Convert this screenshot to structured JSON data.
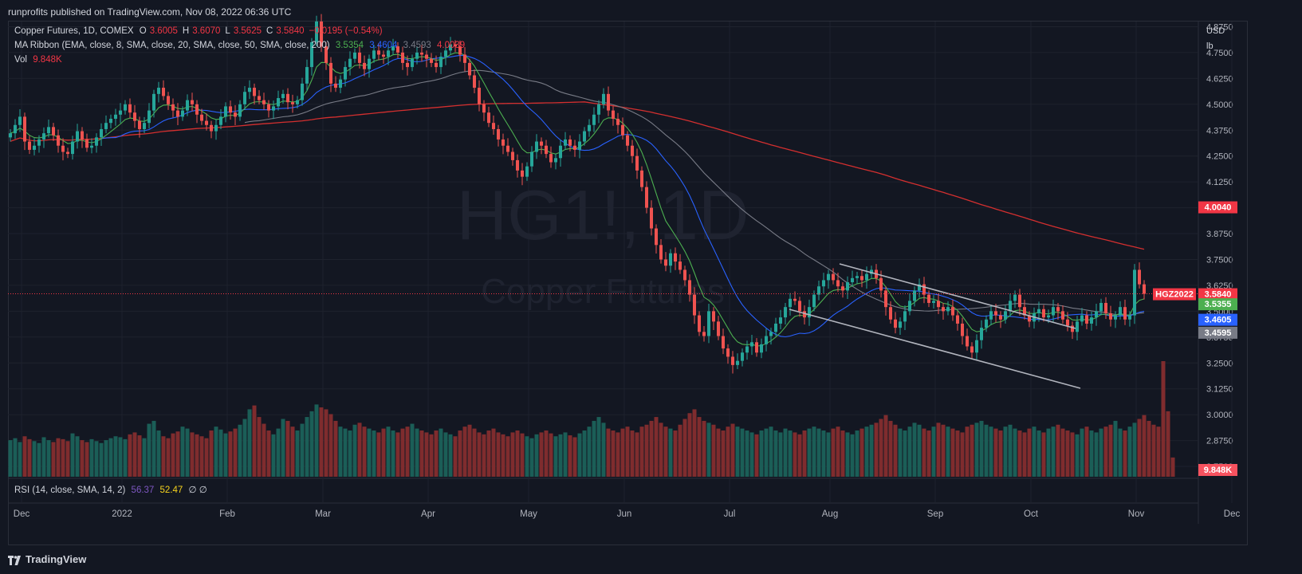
{
  "header": {
    "published": "runprofits published on TradingView.com, Nov 08, 2022 06:36 UTC"
  },
  "legend": {
    "symbol": "Copper Futures, 1D, COMEX",
    "o_label": "O",
    "o": "3.6005",
    "h_label": "H",
    "h": "3.6070",
    "l_label": "L",
    "l": "3.5625",
    "c_label": "C",
    "c": "3.5840",
    "change": "−0.0195 (−0.54%)",
    "ribbon": "MA Ribbon (EMA, close, 8, SMA, close, 20, SMA, close, 50, SMA, close, 200)",
    "ribbon_vals": [
      "3.5354",
      "3.4604",
      "3.4593",
      "4.0039"
    ],
    "vol_label": "Vol",
    "vol": "9.848K",
    "rsi": "RSI (14, close, SMA, 14, 2)",
    "rsi_val": "56.37",
    "rsi_ma": "52.47",
    "rsi_empty": "∅ ∅"
  },
  "watermark": {
    "symbol": "HG1!, 1D",
    "name": "Copper Futures"
  },
  "axis": {
    "currency": "USD",
    "unit": "lb"
  },
  "price_tags": {
    "ma200": {
      "text": "4.0040",
      "color": "#f23645"
    },
    "contract": {
      "text": "HGZ2022",
      "color": "#f23645"
    },
    "last": {
      "text": "3.5840",
      "color": "#f23645"
    },
    "ema8": {
      "text": "3.5355",
      "color": "#4caf50"
    },
    "sma20": {
      "text": "3.4605",
      "color": "#2962ff"
    },
    "sma50": {
      "text": "3.4595",
      "color": "#787b86"
    },
    "vol": {
      "text": "9.848K",
      "color": "#f7525f"
    }
  },
  "footer": {
    "brand": "TradingView"
  },
  "colors": {
    "up": "#26a69a",
    "down": "#ef5350",
    "ema8": "#4caf50",
    "sma20": "#2962ff",
    "sma50": "#787b86",
    "sma200": "#d32f2f",
    "channel": "#b2b5be"
  },
  "chart_data": {
    "type": "candlestick",
    "y_ticks": [
      4.875,
      4.75,
      4.625,
      4.5,
      4.375,
      4.25,
      4.125,
      4.0,
      3.875,
      3.75,
      3.625,
      3.5,
      3.375,
      3.25,
      3.125,
      3.0,
      2.875,
      2.75
    ],
    "ylim": [
      2.7,
      4.9
    ],
    "x_labels": [
      "Dec",
      "2022",
      "Feb",
      "Mar",
      "Apr",
      "May",
      "Jun",
      "Jul",
      "Aug",
      "Sep",
      "Oct",
      "Nov",
      "Dec"
    ],
    "x_label_index": [
      0,
      21,
      43,
      63,
      85,
      106,
      126,
      148,
      169,
      191,
      211,
      233,
      253
    ],
    "closes": [
      4.36,
      4.4,
      4.44,
      4.32,
      4.28,
      4.3,
      4.33,
      4.36,
      4.39,
      4.35,
      4.3,
      4.27,
      4.26,
      4.32,
      4.37,
      4.33,
      4.29,
      4.3,
      4.34,
      4.38,
      4.41,
      4.43,
      4.45,
      4.47,
      4.5,
      4.46,
      4.42,
      4.38,
      4.41,
      4.47,
      4.55,
      4.58,
      4.54,
      4.5,
      4.47,
      4.44,
      4.47,
      4.52,
      4.5,
      4.45,
      4.42,
      4.4,
      4.37,
      4.4,
      4.44,
      4.49,
      4.46,
      4.44,
      4.5,
      4.56,
      4.58,
      4.54,
      4.52,
      4.5,
      4.47,
      4.49,
      4.53,
      4.55,
      4.51,
      4.5,
      4.52,
      4.6,
      4.68,
      4.8,
      4.9,
      4.78,
      4.7,
      4.6,
      4.58,
      4.62,
      4.68,
      4.72,
      4.75,
      4.7,
      4.67,
      4.72,
      4.76,
      4.74,
      4.73,
      4.76,
      4.78,
      4.75,
      4.7,
      4.68,
      4.72,
      4.75,
      4.74,
      4.72,
      4.7,
      4.68,
      4.73,
      4.76,
      4.79,
      4.78,
      4.74,
      4.7,
      4.64,
      4.58,
      4.5,
      4.46,
      4.41,
      4.38,
      4.33,
      4.3,
      4.27,
      4.23,
      4.18,
      4.15,
      4.2,
      4.27,
      4.32,
      4.3,
      4.26,
      4.22,
      4.24,
      4.3,
      4.33,
      4.3,
      4.28,
      4.32,
      4.37,
      4.4,
      4.45,
      4.5,
      4.55,
      4.47,
      4.43,
      4.4,
      4.35,
      4.3,
      4.25,
      4.18,
      4.1,
      4.0,
      3.9,
      3.82,
      3.75,
      3.72,
      3.78,
      3.74,
      3.7,
      3.65,
      3.58,
      3.48,
      3.4,
      3.38,
      3.5,
      3.45,
      3.38,
      3.32,
      3.28,
      3.24,
      3.26,
      3.3,
      3.33,
      3.35,
      3.3,
      3.34,
      3.38,
      3.4,
      3.44,
      3.47,
      3.52,
      3.56,
      3.55,
      3.5,
      3.47,
      3.52,
      3.58,
      3.62,
      3.65,
      3.68,
      3.65,
      3.62,
      3.6,
      3.64,
      3.66,
      3.67,
      3.65,
      3.68,
      3.7,
      3.66,
      3.6,
      3.52,
      3.46,
      3.42,
      3.45,
      3.5,
      3.55,
      3.6,
      3.63,
      3.58,
      3.54,
      3.55,
      3.52,
      3.5,
      3.52,
      3.48,
      3.44,
      3.38,
      3.33,
      3.3,
      3.36,
      3.42,
      3.46,
      3.5,
      3.48,
      3.46,
      3.5,
      3.55,
      3.58,
      3.52,
      3.48,
      3.45,
      3.49,
      3.51,
      3.47,
      3.48,
      3.52,
      3.5,
      3.46,
      3.43,
      3.4,
      3.45,
      3.48,
      3.44,
      3.47,
      3.5,
      3.54,
      3.49,
      3.46,
      3.48,
      3.52,
      3.46,
      3.48,
      3.7,
      3.63,
      3.584
    ],
    "volumes": [
      38,
      40,
      36,
      42,
      39,
      37,
      35,
      41,
      38,
      36,
      40,
      39,
      37,
      45,
      42,
      38,
      36,
      39,
      37,
      35,
      38,
      40,
      42,
      41,
      39,
      44,
      46,
      43,
      40,
      55,
      58,
      48,
      42,
      40,
      45,
      47,
      52,
      50,
      46,
      44,
      42,
      40,
      48,
      52,
      49,
      45,
      47,
      50,
      54,
      60,
      70,
      74,
      62,
      55,
      48,
      44,
      50,
      60,
      58,
      52,
      48,
      55,
      62,
      68,
      75,
      72,
      70,
      65,
      58,
      52,
      50,
      48,
      54,
      56,
      52,
      50,
      48,
      46,
      50,
      52,
      48,
      46,
      50,
      52,
      55,
      50,
      48,
      46,
      44,
      48,
      50,
      46,
      44,
      42,
      48,
      52,
      54,
      50,
      46,
      44,
      48,
      50,
      46,
      44,
      42,
      46,
      48,
      45,
      42,
      40,
      44,
      46,
      48,
      45,
      42,
      44,
      46,
      43,
      41,
      45,
      48,
      52,
      58,
      62,
      56,
      50,
      48,
      46,
      50,
      52,
      48,
      46,
      52,
      54,
      58,
      62,
      56,
      52,
      50,
      48,
      54,
      60,
      66,
      70,
      62,
      58,
      56,
      54,
      50,
      48,
      52,
      55,
      52,
      50,
      48,
      46,
      44,
      48,
      50,
      52,
      48,
      46,
      50,
      48,
      46,
      44,
      48,
      50,
      52,
      50,
      48,
      46,
      50,
      52,
      48,
      46,
      44,
      48,
      50,
      52,
      54,
      56,
      60,
      64,
      58,
      54,
      50,
      48,
      52,
      56,
      54,
      50,
      48,
      52,
      56,
      54,
      52,
      50,
      48,
      46,
      52,
      54,
      56,
      58,
      54,
      52,
      50,
      48,
      52,
      54,
      50,
      48,
      46,
      50,
      52,
      48,
      46,
      50,
      52,
      54,
      50,
      48,
      46,
      44,
      50,
      52,
      48,
      46,
      50,
      52,
      54,
      58,
      50,
      48,
      52,
      56,
      60,
      64,
      58,
      54,
      52,
      120,
      68,
      20
    ]
  }
}
